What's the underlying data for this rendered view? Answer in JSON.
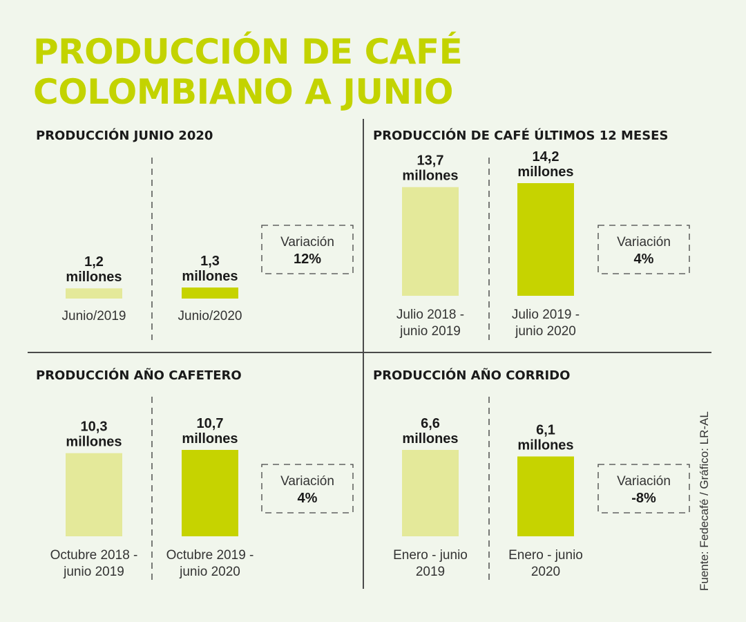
{
  "title": {
    "line1": "PRODUCCIÓN DE CAFÉ",
    "line2": "COLOMBIANO A JUNIO"
  },
  "source": "Fuente: Fedecafé / Gráfico: LR-AL",
  "colors": {
    "title": "#c3d300",
    "bar_prev": "#e4e99a",
    "bar_curr": "#c6d300",
    "background": "#f1f6ec"
  },
  "chart_data": [
    {
      "type": "bar",
      "title": "PRODUCCIÓN JUNIO 2020",
      "categories": [
        [
          "Junio/2019"
        ],
        [
          "Junio/2020"
        ]
      ],
      "values": [
        1.2,
        1.3
      ],
      "value_labels": [
        [
          "1,2",
          "millones"
        ],
        [
          "1,3",
          "millones"
        ]
      ],
      "variation_label": "Variación",
      "variation_value": "12%"
    },
    {
      "type": "bar",
      "title": "PRODUCCIÓN DE CAFÉ ÚLTIMOS 12 MESES",
      "categories": [
        [
          "Julio 2018 -",
          "junio 2019"
        ],
        [
          "Julio 2019 -",
          "junio 2020"
        ]
      ],
      "values": [
        13.7,
        14.2
      ],
      "value_labels": [
        [
          "13,7",
          "millones"
        ],
        [
          "14,2",
          "millones"
        ]
      ],
      "variation_label": "Variación",
      "variation_value": "4%"
    },
    {
      "type": "bar",
      "title": "PRODUCCIÓN AÑO CAFETERO",
      "categories": [
        [
          "Octubre 2018 -",
          "junio 2019"
        ],
        [
          "Octubre 2019 -",
          "junio 2020"
        ]
      ],
      "values": [
        10.3,
        10.7
      ],
      "value_labels": [
        [
          "10,3",
          "millones"
        ],
        [
          "10,7",
          "millones"
        ]
      ],
      "variation_label": "Variación",
      "variation_value": "4%"
    },
    {
      "type": "bar",
      "title": "PRODUCCIÓN AÑO CORRIDO",
      "categories": [
        [
          "Enero - junio",
          "2019"
        ],
        [
          "Enero - junio",
          "2020"
        ]
      ],
      "values": [
        6.6,
        6.1
      ],
      "value_labels": [
        [
          "6,6",
          "millones"
        ],
        [
          "6,1",
          "millones"
        ]
      ],
      "variation_label": "Variación",
      "variation_value": "-8%"
    }
  ]
}
